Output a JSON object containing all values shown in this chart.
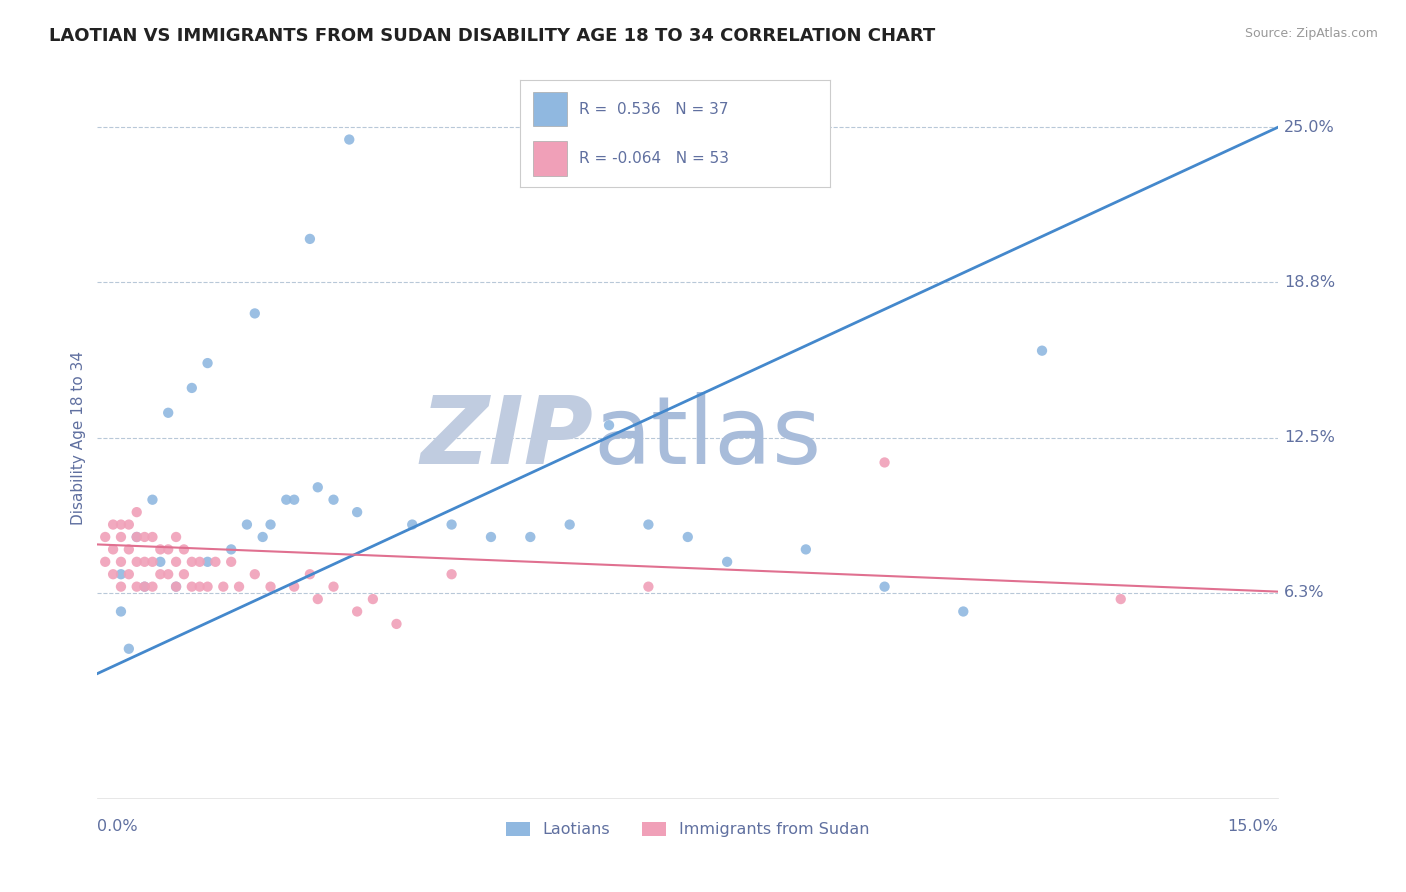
{
  "title": "LAOTIAN VS IMMIGRANTS FROM SUDAN DISABILITY AGE 18 TO 34 CORRELATION CHART",
  "source": "Source: ZipAtlas.com",
  "ylabel": "Disability Age 18 to 34",
  "xlim": [
    0.0,
    0.15
  ],
  "ylim": [
    -0.02,
    0.27
  ],
  "plot_ylim": [
    -0.02,
    0.27
  ],
  "xtick_labels": [
    "0.0%",
    "15.0%"
  ],
  "yticks": [
    0.0625,
    0.125,
    0.1875,
    0.25
  ],
  "ytick_labels": [
    "6.3%",
    "12.5%",
    "18.8%",
    "25.0%"
  ],
  "background_color": "#ffffff",
  "grid_color": "#b8c8d8",
  "title_color": "#222222",
  "title_fontsize": 13,
  "axis_label_color": "#6070a0",
  "tick_label_color": "#6070a0",
  "source_color": "#999999",
  "blue_color": "#90b8e0",
  "pink_color": "#f0a0b8",
  "blue_line_color": "#4488cc",
  "pink_line_color": "#e07090",
  "legend_label1": "Laotians",
  "legend_label2": "Immigrants from Sudan",
  "blue_scatter_x": [
    0.032,
    0.027,
    0.02,
    0.014,
    0.012,
    0.009,
    0.007,
    0.005,
    0.003,
    0.003,
    0.004,
    0.006,
    0.008,
    0.01,
    0.014,
    0.017,
    0.019,
    0.021,
    0.022,
    0.024,
    0.025,
    0.028,
    0.03,
    0.033,
    0.04,
    0.045,
    0.05,
    0.055,
    0.06,
    0.065,
    0.07,
    0.08,
    0.09,
    0.1,
    0.11,
    0.12,
    0.075
  ],
  "blue_scatter_y": [
    0.245,
    0.205,
    0.175,
    0.155,
    0.145,
    0.135,
    0.1,
    0.085,
    0.07,
    0.055,
    0.04,
    0.065,
    0.075,
    0.065,
    0.075,
    0.08,
    0.09,
    0.085,
    0.09,
    0.1,
    0.1,
    0.105,
    0.1,
    0.095,
    0.09,
    0.09,
    0.085,
    0.085,
    0.09,
    0.13,
    0.09,
    0.075,
    0.08,
    0.065,
    0.055,
    0.16,
    0.085
  ],
  "pink_scatter_x": [
    0.001,
    0.001,
    0.002,
    0.002,
    0.002,
    0.003,
    0.003,
    0.003,
    0.003,
    0.004,
    0.004,
    0.004,
    0.005,
    0.005,
    0.005,
    0.005,
    0.006,
    0.006,
    0.006,
    0.007,
    0.007,
    0.007,
    0.008,
    0.008,
    0.009,
    0.009,
    0.01,
    0.01,
    0.01,
    0.011,
    0.011,
    0.012,
    0.012,
    0.013,
    0.013,
    0.014,
    0.015,
    0.016,
    0.017,
    0.018,
    0.02,
    0.022,
    0.025,
    0.027,
    0.028,
    0.03,
    0.033,
    0.035,
    0.038,
    0.045,
    0.07,
    0.1,
    0.13
  ],
  "pink_scatter_y": [
    0.085,
    0.075,
    0.09,
    0.08,
    0.07,
    0.09,
    0.085,
    0.075,
    0.065,
    0.09,
    0.08,
    0.07,
    0.095,
    0.085,
    0.075,
    0.065,
    0.085,
    0.075,
    0.065,
    0.085,
    0.075,
    0.065,
    0.08,
    0.07,
    0.08,
    0.07,
    0.085,
    0.075,
    0.065,
    0.08,
    0.07,
    0.075,
    0.065,
    0.075,
    0.065,
    0.065,
    0.075,
    0.065,
    0.075,
    0.065,
    0.07,
    0.065,
    0.065,
    0.07,
    0.06,
    0.065,
    0.055,
    0.06,
    0.05,
    0.07,
    0.065,
    0.115,
    0.06
  ],
  "watermark_text1": "ZIP",
  "watermark_text2": "atlas",
  "watermark_color1": "#c0cce0",
  "watermark_color2": "#a8bcda",
  "watermark_fontsize": 68,
  "blue_line_x0": 0.0,
  "blue_line_y0": 0.03,
  "blue_line_x1": 0.15,
  "blue_line_y1": 0.25,
  "pink_line_x0": 0.0,
  "pink_line_x1": 0.15,
  "pink_line_y0": 0.082,
  "pink_line_y1": 0.063
}
